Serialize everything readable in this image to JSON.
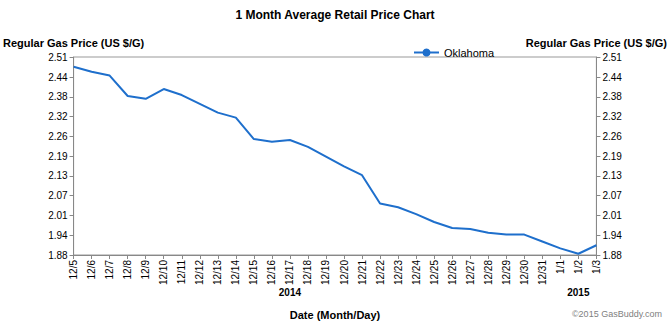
{
  "chart_data": {
    "type": "line",
    "title": "1 Month Average Retail Price Chart",
    "x_label": "Date (Month/Day)",
    "y_label": "Regular Gas Price (US $/G)",
    "y2_label": "Regular Gas Price (US $/G)",
    "x": [
      "12/5",
      "12/6",
      "12/7",
      "12/8",
      "12/9",
      "12/10",
      "12/11",
      "12/12",
      "12/13",
      "12/14",
      "12/15",
      "12/16",
      "12/17",
      "12/18",
      "12/19",
      "12/20",
      "12/21",
      "12/22",
      "12/23",
      "12/24",
      "12/25",
      "12/26",
      "12/27",
      "12/28",
      "12/29",
      "12/30",
      "12/31",
      "1/1",
      "1/2",
      "1/3"
    ],
    "series": [
      {
        "name": "Oklahoma",
        "color": "#1e6fcc",
        "marker": "none",
        "line_style": "solid",
        "values": [
          2.479,
          2.463,
          2.451,
          2.386,
          2.377,
          2.408,
          2.389,
          2.361,
          2.333,
          2.317,
          2.249,
          2.24,
          2.246,
          2.224,
          2.193,
          2.162,
          2.134,
          2.044,
          2.032,
          2.01,
          1.985,
          1.966,
          1.963,
          1.951,
          1.945,
          1.945,
          1.923,
          1.901,
          1.884,
          1.911
        ]
      }
    ],
    "ylim": [
      1.88,
      2.51
    ],
    "yticks": [
      1.88,
      {
        "value": 1.943,
        "label": "1.94"
      },
      {
        "value": 2.006,
        "label": "2.01"
      },
      {
        "value": 2.069,
        "label": "2.07"
      },
      {
        "value": 2.132,
        "label": "2.13"
      },
      {
        "value": 2.194,
        "label": "2.19"
      },
      {
        "value": 2.257,
        "label": "2.26"
      },
      2.32,
      {
        "value": 2.383,
        "label": "2.38"
      },
      {
        "value": 2.444,
        "label": "2.44"
      },
      2.51
    ],
    "y2lim": [
      1.88,
      2.51
    ],
    "y2ticks": [
      1.88,
      {
        "value": 1.943,
        "label": "1.94"
      },
      {
        "value": 2.006,
        "label": "2.01"
      },
      {
        "value": 2.069,
        "label": "2.07"
      },
      {
        "value": 2.132,
        "label": "2.13"
      },
      {
        "value": 2.194,
        "label": "2.19"
      },
      {
        "value": 2.257,
        "label": "2.26"
      },
      2.32,
      {
        "value": 2.383,
        "label": "2.38"
      },
      {
        "value": 2.444,
        "label": "2.44"
      },
      2.51
    ],
    "annotations": [
      {
        "text": "2014",
        "x": "12/17"
      },
      {
        "text": "2015",
        "x": "1/2"
      }
    ],
    "source": "©2015 GasBuddy.com",
    "legend": "top",
    "grid": false
  }
}
